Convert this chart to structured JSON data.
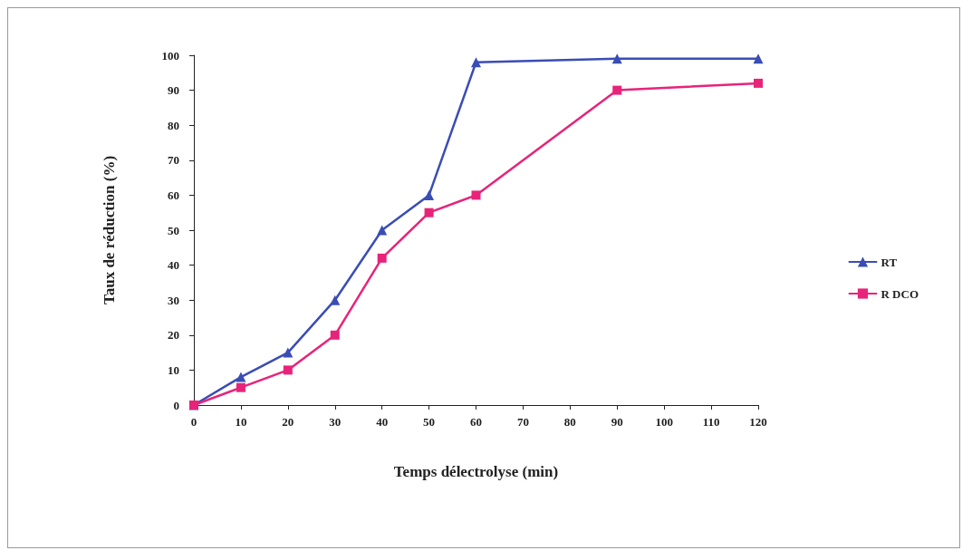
{
  "chart_data": {
    "type": "line",
    "xlabel": "Temps délectrolyse (min)",
    "ylabel": "Taux de réduction (%)",
    "x": [
      0,
      10,
      20,
      30,
      40,
      50,
      60,
      90,
      120
    ],
    "series": [
      {
        "name": "RT",
        "color": "#3a4db5",
        "marker": "triangle",
        "values": [
          0,
          8,
          15,
          30,
          50,
          60,
          98,
          99,
          99
        ]
      },
      {
        "name": "R DCO",
        "color": "#e8237a",
        "marker": "square",
        "values": [
          0,
          5,
          10,
          20,
          42,
          55,
          60,
          90,
          92
        ]
      }
    ],
    "xlim": [
      0,
      120
    ],
    "xticks": [
      0,
      10,
      20,
      30,
      40,
      50,
      60,
      70,
      80,
      90,
      100,
      110,
      120
    ],
    "ylim": [
      0,
      100
    ],
    "yticks": [
      0,
      10,
      20,
      30,
      40,
      50,
      60,
      70,
      80,
      90,
      100
    ],
    "grid": false,
    "legend": "right",
    "line_style": "solid"
  }
}
